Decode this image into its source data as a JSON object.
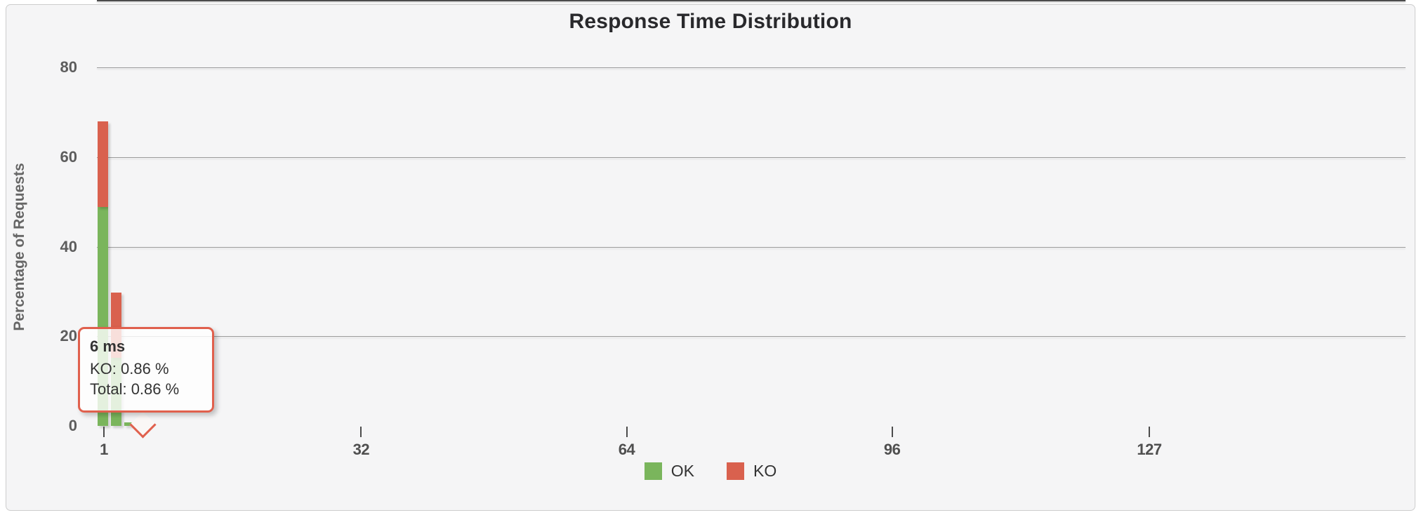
{
  "title": "Response Time Distribution",
  "colors": {
    "ok": "#7ab55c",
    "ko": "#d9614e",
    "panel_bg": "#f5f5f6",
    "panel_border": "#cdcdcd",
    "grid": "#9c9c9c",
    "axis": "#4c4c4c",
    "tooltip_border": "#e0604d",
    "tick_text": "#5d5d5d",
    "label_text": "#666666",
    "title_text": "#29292c"
  },
  "chart_data": {
    "type": "bar",
    "stacked": true,
    "title": "Response Time Distribution",
    "xlabel": "",
    "ylabel": "Percentage of Requests",
    "ylim": [
      0,
      80
    ],
    "y_ticks": [
      0,
      20,
      40,
      60,
      80
    ],
    "x_ticks": [
      1,
      32,
      64,
      96,
      127
    ],
    "grid": "horizontal",
    "legend_position": "bottom-center",
    "buckets_ms": [
      1,
      2,
      4,
      6
    ],
    "series": [
      {
        "name": "OK",
        "color": "#7ab55c",
        "values_by_bucket": {
          "1": 48.9,
          "2": 15.2,
          "4": 0.8,
          "6": 0
        }
      },
      {
        "name": "KO",
        "color": "#d9614e",
        "values_by_bucket": {
          "1": 19.1,
          "2": 14.5,
          "4": 0,
          "6": 0.86
        }
      }
    ]
  },
  "tooltip": {
    "title": "6 ms",
    "lines": [
      "KO: 0.86 %",
      "Total: 0.86 %"
    ],
    "anchor_bucket_ms": 6
  },
  "legend": {
    "items": [
      {
        "label": "OK",
        "color": "#7ab55c"
      },
      {
        "label": "KO",
        "color": "#d9614e"
      }
    ]
  }
}
